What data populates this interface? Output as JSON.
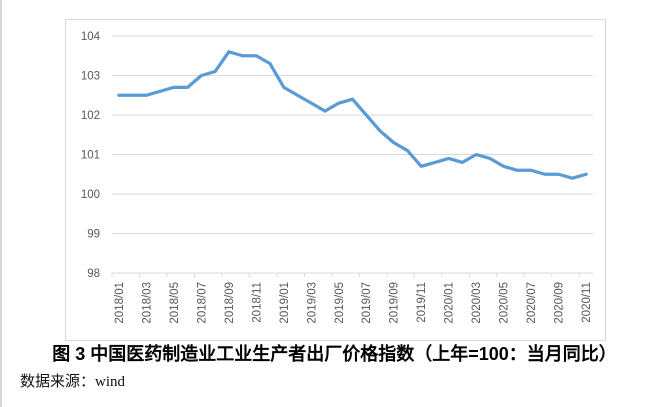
{
  "page": {
    "caption": "图 3 中国医药制造业工业生产者出厂价格指数（上年=100：当月同比）",
    "source": "数据来源：wind"
  },
  "chart_data": {
    "type": "line",
    "title": "图 3 中国医药制造业工业生产者出厂价格指数（上年=100：当月同比）",
    "source_note": "数据来源：wind",
    "x": [
      "2018/01",
      "2018/02",
      "2018/03",
      "2018/04",
      "2018/05",
      "2018/06",
      "2018/07",
      "2018/08",
      "2018/09",
      "2018/10",
      "2018/11",
      "2018/12",
      "2019/01",
      "2019/02",
      "2019/03",
      "2019/04",
      "2019/05",
      "2019/06",
      "2019/07",
      "2019/08",
      "2019/09",
      "2019/10",
      "2019/11",
      "2019/12",
      "2020/01",
      "2020/02",
      "2020/03",
      "2020/04",
      "2020/05",
      "2020/06",
      "2020/07",
      "2020/08",
      "2020/09",
      "2020/10",
      "2020/11"
    ],
    "series": [
      {
        "name": "中国医药制造业工业生产者出厂价格指数",
        "color": "#5B9BD5",
        "values": [
          102.5,
          102.5,
          102.5,
          102.6,
          102.7,
          102.7,
          103.0,
          103.1,
          103.6,
          103.5,
          103.5,
          103.3,
          102.7,
          102.5,
          102.3,
          102.1,
          102.3,
          102.4,
          102.0,
          101.6,
          101.3,
          101.1,
          100.7,
          100.8,
          100.9,
          100.8,
          101.0,
          100.9,
          100.7,
          100.6,
          100.6,
          100.5,
          100.5,
          100.4,
          100.5
        ]
      }
    ],
    "ylim": [
      98,
      104
    ],
    "yticks": [
      98,
      99,
      100,
      101,
      102,
      103,
      104
    ],
    "xtick_every": 2,
    "grid": true,
    "legend": null,
    "grid_color": "#D9D9D9",
    "tick_label_color": "#595959"
  }
}
